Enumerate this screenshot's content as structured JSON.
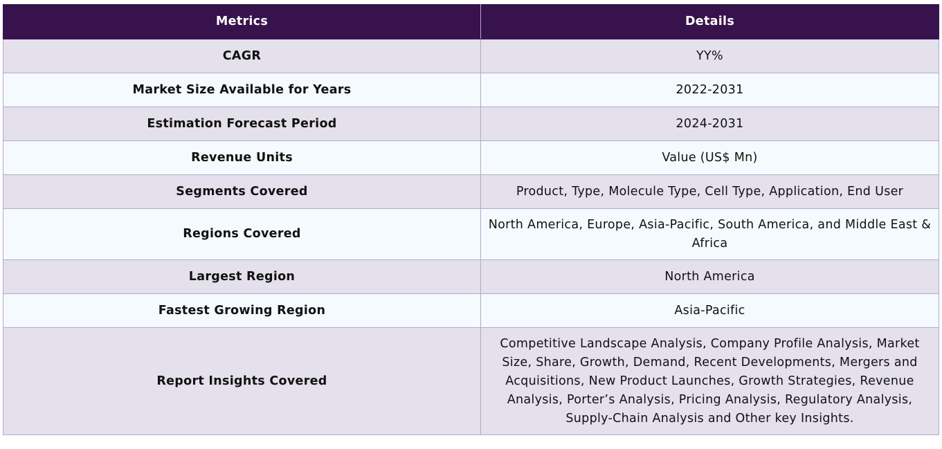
{
  "table": {
    "headers": {
      "metric": "Metrics",
      "details": "Details"
    },
    "rows": [
      {
        "metric": "CAGR",
        "details": "YY%"
      },
      {
        "metric": "Market Size Available for Years",
        "details": "2022-2031"
      },
      {
        "metric": "Estimation Forecast Period",
        "details": "2024-2031"
      },
      {
        "metric": "Revenue Units",
        "details": "Value (US$ Mn)"
      },
      {
        "metric": "Segments Covered",
        "details": "Product, Type, Molecule Type, Cell Type, Application, End User"
      },
      {
        "metric": "Regions Covered",
        "details": "North America, Europe, Asia-Pacific, South America, and Middle East & Africa"
      },
      {
        "metric": "Largest Region",
        "details": "North America"
      },
      {
        "metric": "Fastest Growing Region",
        "details": "Asia-Pacific"
      },
      {
        "metric": "Report Insights Covered",
        "details": "Competitive Landscape Analysis, Company Profile Analysis, Market Size, Share, Growth, Demand, Recent Developments, Mergers and Acquisitions, New Product Launches, Growth Strategies, Revenue Analysis, Porter’s Analysis, Pricing Analysis, Regulatory Analysis, Supply-Chain Analysis and Other key Insights."
      }
    ]
  },
  "colors": {
    "header_bg": "#38124c",
    "header_text": "#ffffff",
    "row_shaded": "#e4e0ec",
    "row_light": "#f4fafd",
    "border": "#b3a9c8"
  }
}
